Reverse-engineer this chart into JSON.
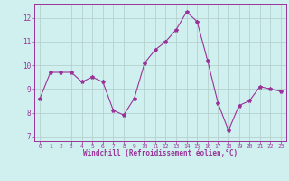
{
  "x": [
    0,
    1,
    2,
    3,
    4,
    5,
    6,
    7,
    8,
    9,
    10,
    11,
    12,
    13,
    14,
    15,
    16,
    17,
    18,
    19,
    20,
    21,
    22,
    23
  ],
  "y": [
    8.6,
    9.7,
    9.7,
    9.7,
    9.3,
    9.5,
    9.3,
    8.1,
    7.9,
    8.6,
    10.1,
    10.65,
    11.0,
    11.5,
    12.25,
    11.85,
    10.2,
    8.4,
    7.25,
    8.3,
    8.5,
    9.1,
    9.0,
    8.9
  ],
  "line_color": "#993399",
  "marker": "*",
  "marker_size": 3,
  "bg_color": "#cff0ee",
  "grid_color": "#b0ccc8",
  "axis_color": "#993399",
  "tick_color": "#993399",
  "label_color": "#993399",
  "xlabel": "Windchill (Refroidissement éolien,°C)",
  "ylim": [
    6.8,
    12.6
  ],
  "xlim": [
    -0.5,
    23.5
  ],
  "yticks": [
    7,
    8,
    9,
    10,
    11,
    12
  ],
  "xticks": [
    0,
    1,
    2,
    3,
    4,
    5,
    6,
    7,
    8,
    9,
    10,
    11,
    12,
    13,
    14,
    15,
    16,
    17,
    18,
    19,
    20,
    21,
    22,
    23
  ]
}
